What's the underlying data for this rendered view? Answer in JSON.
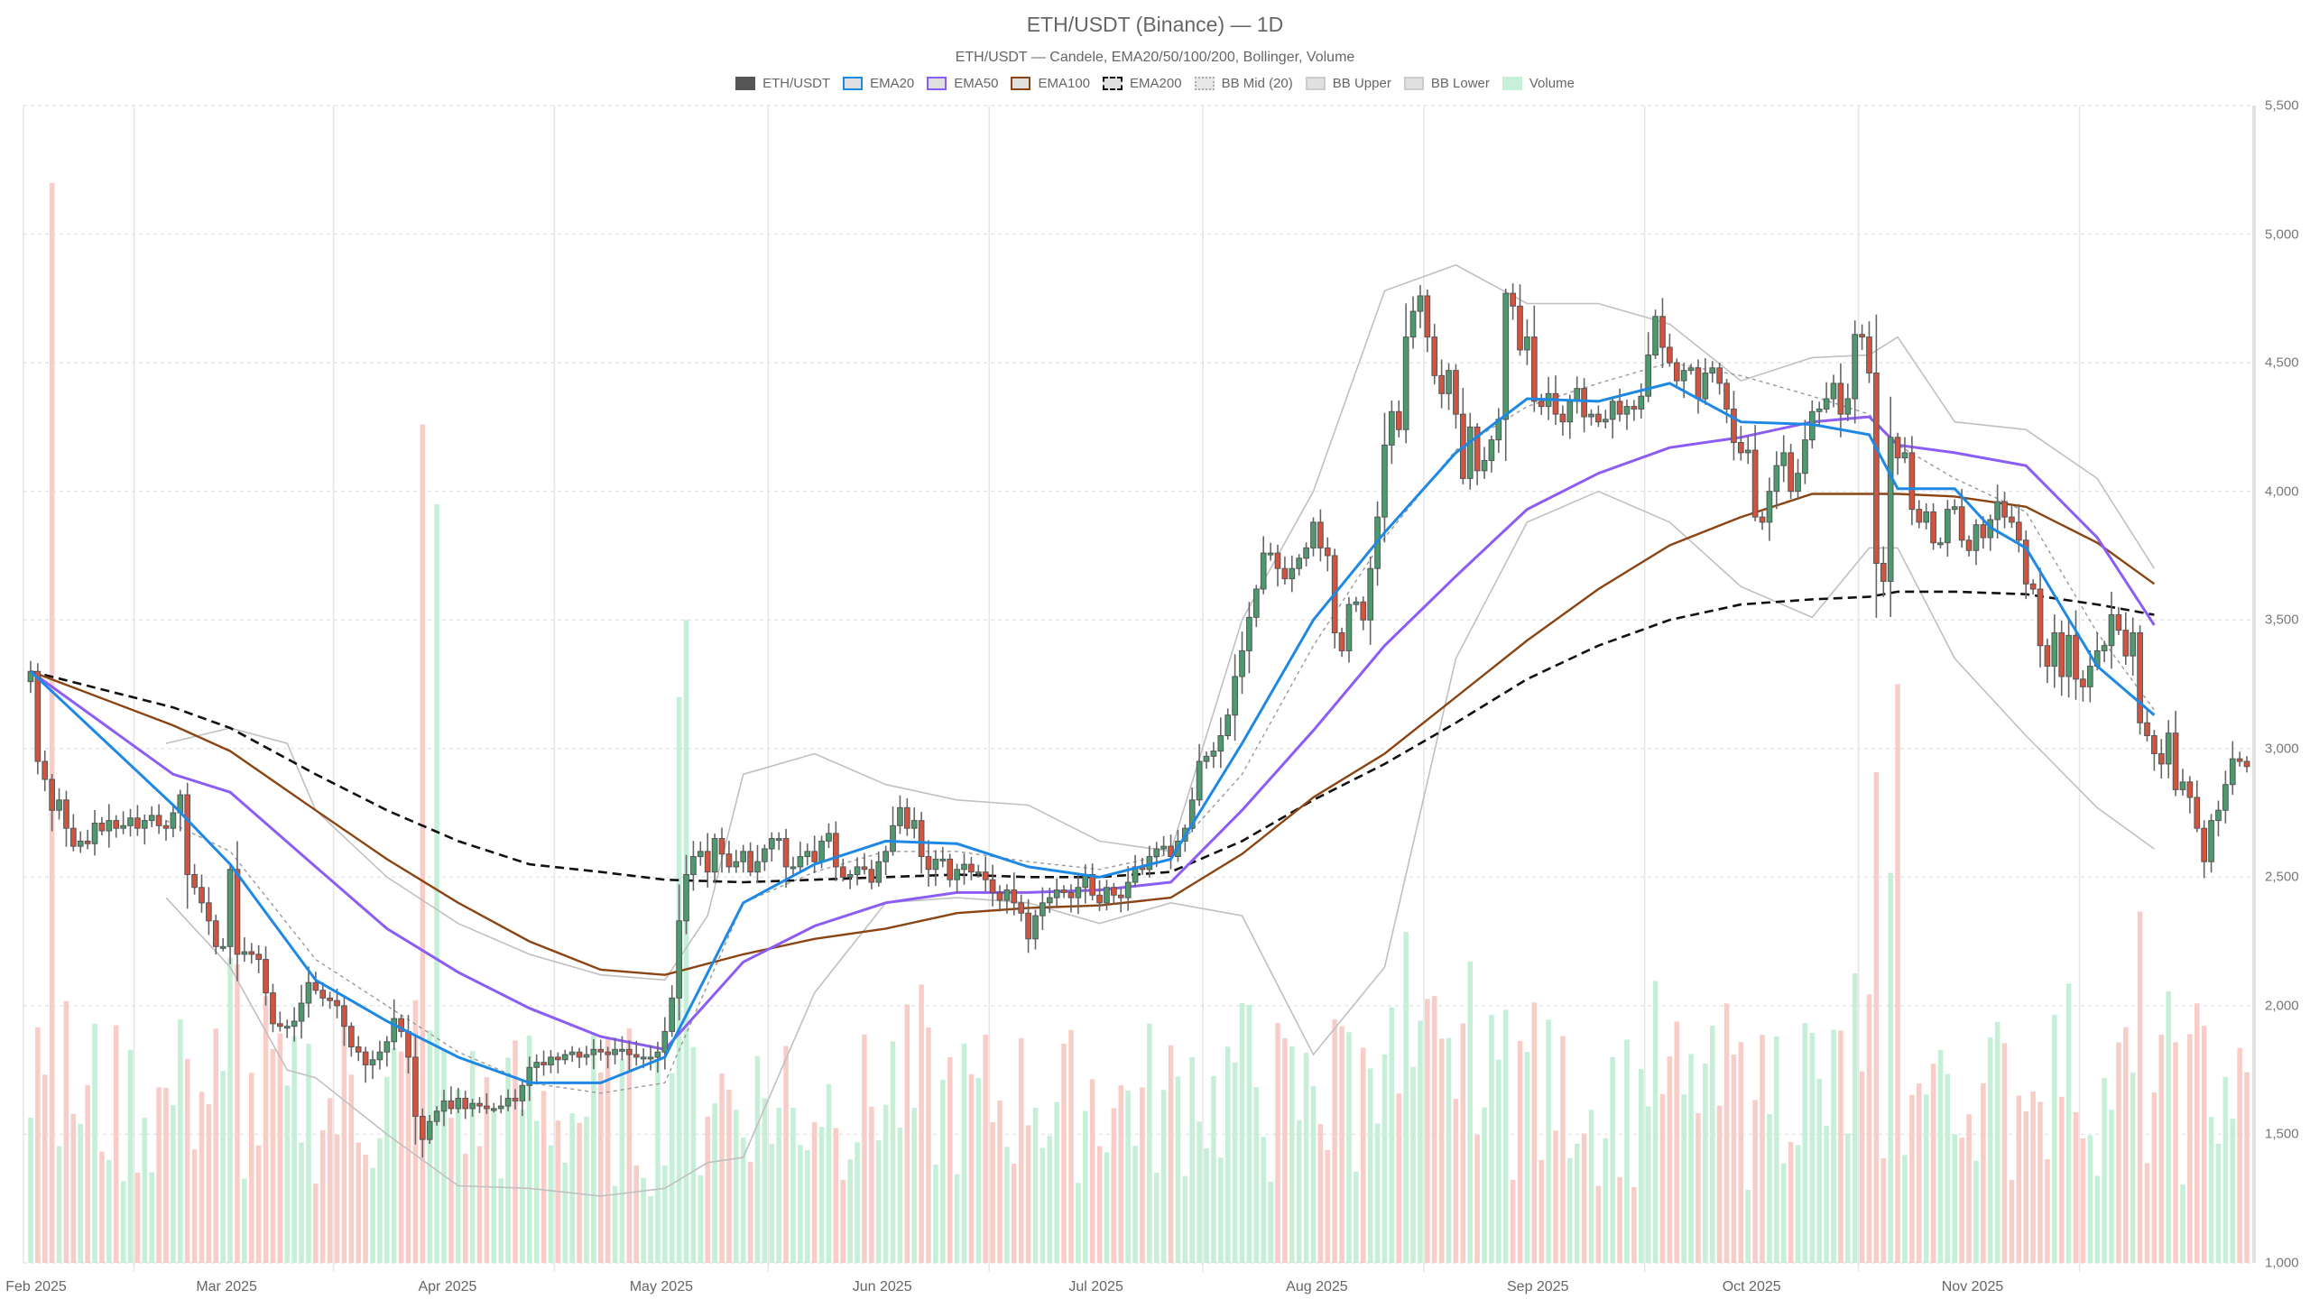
{
  "header": {
    "title": "ETH/USDT (Binance) — 1D",
    "subtitle": "ETH/USDT — Candele, EMA20/50/100/200, Bollinger, Volume"
  },
  "legend": [
    {
      "label": "ETH/USDT",
      "fill": "#555555",
      "border": "#555555",
      "style": "solid"
    },
    {
      "label": "EMA20",
      "fill": "#e0e0e0",
      "border": "#1e88e5",
      "style": "solid"
    },
    {
      "label": "EMA50",
      "fill": "#e0e0e0",
      "border": "#8b5cf6",
      "style": "solid"
    },
    {
      "label": "EMA100",
      "fill": "#e0e0e0",
      "border": "#8b4513",
      "style": "solid"
    },
    {
      "label": "EMA200",
      "fill": "#e0e0e0",
      "border": "#111111",
      "style": "dashed"
    },
    {
      "label": "BB Mid (20)",
      "fill": "#e8e8e8",
      "border": "#aaaaaa",
      "style": "dotted"
    },
    {
      "label": "BB Upper",
      "fill": "#e0e0e0",
      "border": "#cccccc",
      "style": "solid"
    },
    {
      "label": "BB Lower",
      "fill": "#e0e0e0",
      "border": "#cccccc",
      "style": "solid"
    },
    {
      "label": "Volume",
      "fill": "#c8f0d8",
      "border": "#c8f0d8",
      "style": "solid"
    }
  ],
  "colors": {
    "up": "#4e9a6e",
    "down": "#d4533f",
    "wick": "#666666",
    "vol_up": "#c6efd7",
    "vol_down": "#f8cdc8",
    "ema20": "#1e88e5",
    "ema50": "#8b5cf6",
    "ema100": "#8b4513",
    "ema200": "#111111",
    "bb": "#c0c0c0",
    "bb_mid": "#999999",
    "grid": "#e6e6e6"
  },
  "chart_data": {
    "type": "candlestick",
    "title": "ETH/USDT (Binance) — 1D",
    "subtitle": "ETH/USDT — Candele, EMA20/50/100/200, Bollinger, Volume",
    "xlabel": "",
    "ylabel": "",
    "ylim": [
      1000,
      5500
    ],
    "y_ticks": [
      1000,
      1500,
      2000,
      2500,
      3000,
      3500,
      4000,
      4500,
      5000,
      5500
    ],
    "y_tick_labels": [
      "1,000",
      "1,500",
      "2,000",
      "2,500",
      "3,000",
      "3,500",
      "4,000",
      "4,500",
      "5,000",
      "5,500"
    ],
    "x_tick_labels": [
      "Feb 2025",
      "Mar 2025",
      "Apr 2025",
      "May 2025",
      "Jun 2025",
      "Jul 2025",
      "Aug 2025",
      "Sep 2025",
      "Oct 2025",
      "Nov 2025"
    ],
    "x_tick_day_index": [
      0,
      28,
      59,
      89,
      120,
      150,
      181,
      212,
      242,
      273
    ],
    "grid": true,
    "legend_position": "top",
    "start_date": "2025-02-01",
    "closes": [
      3300,
      2950,
      2880,
      2760,
      2800,
      2690,
      2620,
      2640,
      2630,
      2710,
      2680,
      2720,
      2690,
      2700,
      2730,
      2690,
      2720,
      2740,
      2700,
      2690,
      2750,
      2820,
      2510,
      2460,
      2400,
      2330,
      2230,
      2230,
      2530,
      2200,
      2210,
      2200,
      2180,
      2050,
      1930,
      1920,
      1920,
      1940,
      2010,
      2090,
      2060,
      2030,
      2020,
      2000,
      1920,
      1840,
      1820,
      1770,
      1790,
      1820,
      1860,
      1950,
      1900,
      1800,
      1570,
      1480,
      1550,
      1590,
      1630,
      1600,
      1640,
      1600,
      1620,
      1610,
      1600,
      1600,
      1610,
      1640,
      1630,
      1690,
      1760,
      1780,
      1770,
      1800,
      1790,
      1810,
      1820,
      1800,
      1810,
      1830,
      1820,
      1810,
      1830,
      1830,
      1810,
      1800,
      1800,
      1800,
      1820,
      1900,
      2030,
      2330,
      2510,
      2580,
      2600,
      2520,
      2650,
      2590,
      2540,
      2560,
      2600,
      2520,
      2560,
      2610,
      2650,
      2650,
      2540,
      2540,
      2580,
      2600,
      2560,
      2640,
      2670,
      2540,
      2500,
      2510,
      2540,
      2530,
      2480,
      2560,
      2600,
      2700,
      2770,
      2690,
      2720,
      2580,
      2530,
      2570,
      2570,
      2490,
      2530,
      2550,
      2520,
      2520,
      2490,
      2440,
      2410,
      2450,
      2400,
      2360,
      2260,
      2350,
      2400,
      2420,
      2450,
      2440,
      2420,
      2460,
      2510,
      2430,
      2400,
      2460,
      2430,
      2420,
      2480,
      2540,
      2530,
      2580,
      2610,
      2620,
      2580,
      2640,
      2690,
      2800,
      2950,
      2970,
      2990,
      3050,
      3130,
      3280,
      3380,
      3510,
      3620,
      3760,
      3760,
      3700,
      3660,
      3700,
      3740,
      3780,
      3880,
      3780,
      3750,
      3450,
      3380,
      3560,
      3570,
      3500,
      3700,
      3900,
      4180,
      4310,
      4240,
      4600,
      4700,
      4760,
      4600,
      4450,
      4380,
      4470,
      4300,
      4050,
      4250,
      4080,
      4120,
      4200,
      4280,
      4770,
      4720,
      4550,
      4600,
      4350,
      4330,
      4380,
      4300,
      4270,
      4350,
      4400,
      4290,
      4300,
      4270,
      4280,
      4350,
      4300,
      4330,
      4320,
      4370,
      4530,
      4680,
      4560,
      4500,
      4430,
      4470,
      4480,
      4360,
      4460,
      4480,
      4420,
      4320,
      4190,
      4150,
      4160,
      3900,
      3880,
      4000,
      4100,
      4150,
      4000,
      4070,
      4200,
      4310,
      4320,
      4360,
      4420,
      4300,
      4360,
      4610,
      4600,
      4460,
      3720,
      3650,
      4210,
      4130,
      4150,
      3930,
      3880,
      3920,
      3800,
      3800,
      3930,
      3940,
      3810,
      3770,
      3870,
      3820,
      3890,
      3960,
      3900,
      3880,
      3810,
      3640,
      3620,
      3400,
      3320,
      3450,
      3280,
      3440,
      3270,
      3240,
      3320,
      3380,
      3400,
      3520,
      3460,
      3360,
      3450,
      3100,
      3050,
      2980,
      2940,
      3060,
      2840,
      2870,
      2810,
      2690,
      2560,
      2720,
      2760,
      2860,
      2960,
      2950,
      2930
    ],
    "volume_scale_note": "volume drawn as translucent bars on same axis (relative height)",
    "series": [
      {
        "name": "EMA20",
        "points": [
          [
            0,
            3300
          ],
          [
            20,
            2780
          ],
          [
            28,
            2550
          ],
          [
            40,
            2100
          ],
          [
            50,
            1940
          ],
          [
            60,
            1800
          ],
          [
            70,
            1700
          ],
          [
            80,
            1700
          ],
          [
            89,
            1800
          ],
          [
            100,
            2400
          ],
          [
            110,
            2550
          ],
          [
            120,
            2640
          ],
          [
            130,
            2630
          ],
          [
            140,
            2540
          ],
          [
            150,
            2500
          ],
          [
            160,
            2570
          ],
          [
            170,
            3020
          ],
          [
            180,
            3500
          ],
          [
            190,
            3840
          ],
          [
            200,
            4150
          ],
          [
            210,
            4360
          ],
          [
            220,
            4350
          ],
          [
            230,
            4420
          ],
          [
            240,
            4270
          ],
          [
            250,
            4260
          ],
          [
            258,
            4220
          ],
          [
            262,
            4010
          ],
          [
            270,
            4010
          ],
          [
            275,
            3860
          ],
          [
            280,
            3780
          ],
          [
            290,
            3320
          ],
          [
            298,
            3130
          ]
        ]
      },
      {
        "name": "EMA50",
        "points": [
          [
            0,
            3300
          ],
          [
            20,
            2900
          ],
          [
            28,
            2830
          ],
          [
            40,
            2540
          ],
          [
            50,
            2300
          ],
          [
            60,
            2130
          ],
          [
            70,
            1990
          ],
          [
            80,
            1880
          ],
          [
            89,
            1830
          ],
          [
            100,
            2170
          ],
          [
            110,
            2310
          ],
          [
            120,
            2400
          ],
          [
            130,
            2440
          ],
          [
            140,
            2440
          ],
          [
            150,
            2450
          ],
          [
            160,
            2480
          ],
          [
            170,
            2760
          ],
          [
            180,
            3070
          ],
          [
            190,
            3400
          ],
          [
            200,
            3670
          ],
          [
            210,
            3930
          ],
          [
            220,
            4070
          ],
          [
            230,
            4170
          ],
          [
            240,
            4210
          ],
          [
            250,
            4270
          ],
          [
            258,
            4290
          ],
          [
            262,
            4180
          ],
          [
            270,
            4150
          ],
          [
            280,
            4100
          ],
          [
            290,
            3820
          ],
          [
            298,
            3480
          ]
        ]
      },
      {
        "name": "EMA100",
        "points": [
          [
            0,
            3300
          ],
          [
            20,
            3090
          ],
          [
            28,
            2990
          ],
          [
            40,
            2760
          ],
          [
            50,
            2570
          ],
          [
            60,
            2400
          ],
          [
            70,
            2250
          ],
          [
            80,
            2140
          ],
          [
            89,
            2120
          ],
          [
            100,
            2200
          ],
          [
            110,
            2260
          ],
          [
            120,
            2300
          ],
          [
            130,
            2360
          ],
          [
            140,
            2380
          ],
          [
            150,
            2390
          ],
          [
            160,
            2420
          ],
          [
            170,
            2590
          ],
          [
            180,
            2810
          ],
          [
            190,
            2980
          ],
          [
            200,
            3200
          ],
          [
            210,
            3420
          ],
          [
            220,
            3620
          ],
          [
            230,
            3790
          ],
          [
            240,
            3900
          ],
          [
            250,
            3990
          ],
          [
            258,
            3990
          ],
          [
            262,
            3990
          ],
          [
            270,
            3980
          ],
          [
            280,
            3940
          ],
          [
            290,
            3800
          ],
          [
            298,
            3640
          ]
        ]
      },
      {
        "name": "EMA200",
        "points": [
          [
            0,
            3300
          ],
          [
            20,
            3160
          ],
          [
            28,
            3080
          ],
          [
            40,
            2900
          ],
          [
            50,
            2760
          ],
          [
            60,
            2640
          ],
          [
            70,
            2550
          ],
          [
            80,
            2520
          ],
          [
            89,
            2490
          ],
          [
            100,
            2480
          ],
          [
            110,
            2490
          ],
          [
            120,
            2500
          ],
          [
            130,
            2510
          ],
          [
            140,
            2500
          ],
          [
            150,
            2500
          ],
          [
            160,
            2520
          ],
          [
            170,
            2640
          ],
          [
            180,
            2800
          ],
          [
            190,
            2940
          ],
          [
            200,
            3100
          ],
          [
            210,
            3270
          ],
          [
            220,
            3400
          ],
          [
            230,
            3500
          ],
          [
            240,
            3560
          ],
          [
            250,
            3580
          ],
          [
            258,
            3590
          ],
          [
            262,
            3610
          ],
          [
            270,
            3610
          ],
          [
            280,
            3600
          ],
          [
            290,
            3560
          ],
          [
            298,
            3520
          ]
        ]
      },
      {
        "name": "BB Mid (20)",
        "points": [
          [
            19,
            2720
          ],
          [
            28,
            2600
          ],
          [
            40,
            2180
          ],
          [
            50,
            2000
          ],
          [
            60,
            1820
          ],
          [
            70,
            1700
          ],
          [
            80,
            1660
          ],
          [
            89,
            1700
          ],
          [
            100,
            2400
          ],
          [
            110,
            2520
          ],
          [
            120,
            2600
          ],
          [
            130,
            2600
          ],
          [
            140,
            2560
          ],
          [
            150,
            2530
          ],
          [
            160,
            2590
          ],
          [
            170,
            2900
          ],
          [
            180,
            3400
          ],
          [
            190,
            3820
          ],
          [
            200,
            4160
          ],
          [
            210,
            4330
          ],
          [
            220,
            4420
          ],
          [
            230,
            4500
          ],
          [
            240,
            4450
          ],
          [
            250,
            4370
          ],
          [
            258,
            4300
          ],
          [
            262,
            4180
          ],
          [
            270,
            4050
          ],
          [
            280,
            3920
          ],
          [
            290,
            3450
          ],
          [
            298,
            3150
          ]
        ]
      },
      {
        "name": "BB Upper",
        "points": [
          [
            19,
            3020
          ],
          [
            28,
            3080
          ],
          [
            36,
            3020
          ],
          [
            40,
            2760
          ],
          [
            50,
            2500
          ],
          [
            60,
            2320
          ],
          [
            70,
            2200
          ],
          [
            80,
            2120
          ],
          [
            89,
            2100
          ],
          [
            95,
            2350
          ],
          [
            100,
            2900
          ],
          [
            110,
            2980
          ],
          [
            120,
            2860
          ],
          [
            130,
            2800
          ],
          [
            140,
            2780
          ],
          [
            150,
            2640
          ],
          [
            160,
            2600
          ],
          [
            170,
            3500
          ],
          [
            180,
            4000
          ],
          [
            190,
            4780
          ],
          [
            200,
            4880
          ],
          [
            210,
            4730
          ],
          [
            220,
            4730
          ],
          [
            230,
            4650
          ],
          [
            240,
            4430
          ],
          [
            250,
            4520
          ],
          [
            258,
            4530
          ],
          [
            262,
            4600
          ],
          [
            270,
            4270
          ],
          [
            280,
            4240
          ],
          [
            290,
            4050
          ],
          [
            298,
            3700
          ]
        ]
      },
      {
        "name": "BB Lower",
        "points": [
          [
            19,
            2420
          ],
          [
            28,
            2150
          ],
          [
            36,
            1750
          ],
          [
            40,
            1720
          ],
          [
            50,
            1500
          ],
          [
            60,
            1300
          ],
          [
            70,
            1290
          ],
          [
            80,
            1260
          ],
          [
            89,
            1290
          ],
          [
            95,
            1390
          ],
          [
            100,
            1410
          ],
          [
            110,
            2050
          ],
          [
            120,
            2400
          ],
          [
            130,
            2420
          ],
          [
            140,
            2400
          ],
          [
            150,
            2320
          ],
          [
            160,
            2400
          ],
          [
            170,
            2350
          ],
          [
            180,
            1810
          ],
          [
            190,
            2150
          ],
          [
            200,
            3350
          ],
          [
            210,
            3880
          ],
          [
            220,
            4000
          ],
          [
            230,
            3880
          ],
          [
            240,
            3630
          ],
          [
            250,
            3510
          ],
          [
            258,
            3780
          ],
          [
            262,
            3780
          ],
          [
            270,
            3350
          ],
          [
            280,
            3050
          ],
          [
            290,
            2770
          ],
          [
            298,
            2610
          ]
        ]
      }
    ]
  }
}
